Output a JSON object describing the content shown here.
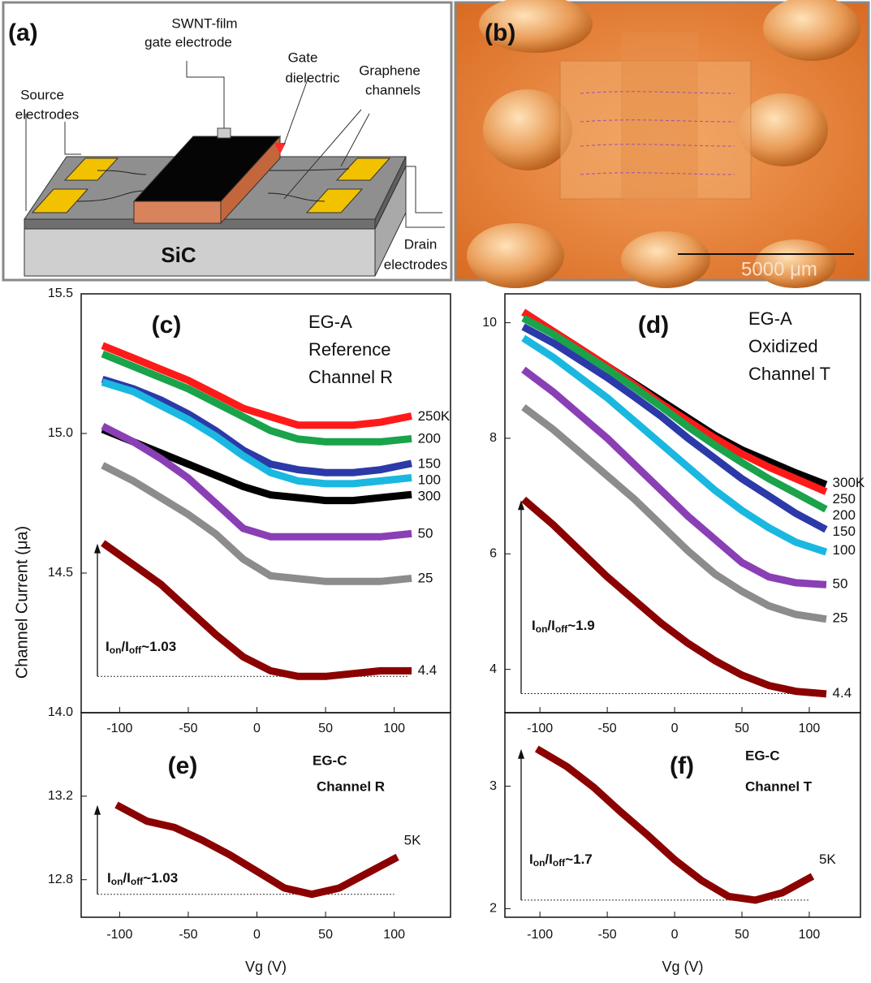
{
  "panel_a": {
    "label": "(a)",
    "swnt_1": "SWNT-film",
    "swnt_2": "gate electrode",
    "gate_1": "Gate",
    "gate_2": "dielectric",
    "graphene_1": "Graphene",
    "graphene_2": "channels",
    "source_1": "Source",
    "source_2": "electrodes",
    "drain_1": "Drain",
    "drain_2": "electrodes",
    "substrate": "SiC"
  },
  "panel_b": {
    "label": "(b)",
    "scale": "5000 μm"
  },
  "ylabel": "Channel Current (μa)",
  "chart_data": [
    {
      "type": "line",
      "panel": "(c)",
      "annotations": [
        "EG-A",
        "Reference",
        "Channel R"
      ],
      "ratio_label": [
        "I",
        "on",
        "/I",
        "off",
        "~1.03"
      ],
      "x": [
        -110,
        -90,
        -70,
        -50,
        -30,
        -10,
        10,
        30,
        50,
        70,
        90,
        110
      ],
      "xlim": [
        -128,
        141
      ],
      "xticks": [
        -100,
        -50,
        0,
        50,
        100
      ],
      "ylim": [
        14.0,
        15.5
      ],
      "yticks": [
        {
          "value": 14.0,
          "label": "14.0"
        },
        14.5,
        {
          "value": 15.0,
          "label": "15.0"
        },
        15.5
      ],
      "series": [
        {
          "name": "250K",
          "color": "#ff1a1a",
          "values": [
            15.31,
            15.27,
            15.23,
            15.19,
            15.14,
            15.09,
            15.06,
            15.03,
            15.03,
            15.03,
            15.04,
            15.06
          ]
        },
        {
          "name": "200",
          "color": "#1aa34a",
          "values": [
            15.28,
            15.24,
            15.2,
            15.16,
            15.11,
            15.06,
            15.01,
            14.98,
            14.97,
            14.97,
            14.97,
            14.98
          ]
        },
        {
          "name": "150",
          "color": "#2b3aa8",
          "values": [
            15.19,
            15.16,
            15.12,
            15.07,
            15.01,
            14.94,
            14.89,
            14.87,
            14.86,
            14.86,
            14.87,
            14.89
          ]
        },
        {
          "name": "100",
          "color": "#1ab8e0",
          "values": [
            15.18,
            15.15,
            15.1,
            15.05,
            14.99,
            14.92,
            14.86,
            14.83,
            14.82,
            14.82,
            14.83,
            14.84
          ]
        },
        {
          "name": "300",
          "color": "#000000",
          "values": [
            15.01,
            14.97,
            14.93,
            14.89,
            14.85,
            14.81,
            14.78,
            14.77,
            14.76,
            14.76,
            14.77,
            14.78
          ]
        },
        {
          "name": "50",
          "color": "#8a3fb5",
          "values": [
            15.02,
            14.97,
            14.91,
            14.84,
            14.75,
            14.66,
            14.63,
            14.63,
            14.63,
            14.63,
            14.63,
            14.64
          ]
        },
        {
          "name": "25",
          "color": "#8c8c8c",
          "values": [
            14.88,
            14.83,
            14.77,
            14.71,
            14.64,
            14.55,
            14.49,
            14.48,
            14.47,
            14.47,
            14.47,
            14.48
          ]
        },
        {
          "name": "4.4",
          "color": "#8b0000",
          "values": [
            14.6,
            14.53,
            14.46,
            14.37,
            14.28,
            14.2,
            14.15,
            14.13,
            14.13,
            14.14,
            14.15,
            14.15
          ]
        }
      ]
    },
    {
      "type": "line",
      "panel": "(d)",
      "annotations": [
        "EG-A",
        "Oxidized",
        "Channel T"
      ],
      "ratio_label": [
        "I",
        "on",
        "/I",
        "off",
        "~1.9"
      ],
      "x": [
        -110,
        -90,
        -70,
        -50,
        -30,
        -10,
        10,
        30,
        50,
        70,
        90,
        110
      ],
      "xlim": [
        -126,
        138
      ],
      "xticks": [
        -100,
        -50,
        0,
        50,
        100
      ],
      "ylim": [
        3.25,
        10.5
      ],
      "yticks": [
        4,
        6,
        8,
        10
      ],
      "series": [
        {
          "name": "300K",
          "color": "#000000",
          "values": [
            10.15,
            9.85,
            9.55,
            9.25,
            8.95,
            8.65,
            8.35,
            8.05,
            7.8,
            7.6,
            7.4,
            7.22
          ]
        },
        {
          "name": "250",
          "color": "#ff1a1a",
          "values": [
            10.15,
            9.85,
            9.55,
            9.25,
            8.93,
            8.6,
            8.3,
            8.0,
            7.73,
            7.5,
            7.3,
            7.1
          ]
        },
        {
          "name": "200",
          "color": "#1aa34a",
          "values": [
            10.05,
            9.8,
            9.5,
            9.2,
            8.88,
            8.55,
            8.2,
            7.88,
            7.58,
            7.3,
            7.05,
            6.8
          ]
        },
        {
          "name": "150",
          "color": "#2b3aa8",
          "values": [
            9.9,
            9.65,
            9.35,
            9.05,
            8.72,
            8.38,
            8.0,
            7.65,
            7.3,
            7.0,
            6.7,
            6.45
          ]
        },
        {
          "name": "100",
          "color": "#1ab8e0",
          "values": [
            9.7,
            9.4,
            9.05,
            8.7,
            8.3,
            7.9,
            7.5,
            7.1,
            6.75,
            6.45,
            6.2,
            6.05
          ]
        },
        {
          "name": "50",
          "color": "#8a3fb5",
          "values": [
            9.15,
            8.8,
            8.4,
            8.0,
            7.55,
            7.1,
            6.65,
            6.25,
            5.85,
            5.6,
            5.5,
            5.47
          ]
        },
        {
          "name": "25",
          "color": "#8c8c8c",
          "values": [
            8.5,
            8.15,
            7.75,
            7.35,
            6.95,
            6.5,
            6.05,
            5.65,
            5.35,
            5.1,
            4.95,
            4.88
          ]
        },
        {
          "name": "4.4",
          "color": "#8b0000",
          "values": [
            6.9,
            6.5,
            6.05,
            5.6,
            5.2,
            4.8,
            4.45,
            4.15,
            3.9,
            3.72,
            3.62,
            3.58
          ]
        }
      ]
    },
    {
      "type": "line",
      "panel": "(e)",
      "annotations": [
        "EG-C",
        "Channel R"
      ],
      "ratio_label": [
        "I",
        "on",
        "/I",
        "off",
        "~1.03"
      ],
      "xlabel": "Vg (V)",
      "x": [
        -100,
        -80,
        -60,
        -40,
        -20,
        0,
        20,
        40,
        60,
        80,
        100
      ],
      "xlim": [
        -128,
        141
      ],
      "xticks": [
        -100,
        -50,
        0,
        50,
        100
      ],
      "ylim": [
        12.62,
        13.6
      ],
      "yticks": [
        12.8,
        13.2
      ],
      "series": [
        {
          "name": "5K",
          "color": "#8b0000",
          "values": [
            13.15,
            13.08,
            13.05,
            12.99,
            12.92,
            12.84,
            12.76,
            12.73,
            12.76,
            12.83,
            12.9
          ]
        }
      ]
    },
    {
      "type": "line",
      "panel": "(f)",
      "annotations": [
        "EG-C",
        "Channel T"
      ],
      "ratio_label": [
        "I",
        "on",
        "/I",
        "off",
        "~1.7"
      ],
      "xlabel": "Vg (V)",
      "x": [
        -100,
        -80,
        -60,
        -40,
        -20,
        0,
        20,
        40,
        60,
        80,
        100
      ],
      "xlim": [
        -126,
        138
      ],
      "xticks": [
        -100,
        -50,
        0,
        50,
        100
      ],
      "ylim": [
        1.93,
        3.6
      ],
      "yticks": [
        2,
        3
      ],
      "series": [
        {
          "name": "5K",
          "color": "#8b0000",
          "values": [
            3.29,
            3.16,
            2.99,
            2.79,
            2.6,
            2.4,
            2.23,
            2.1,
            2.07,
            2.13,
            2.25
          ]
        }
      ]
    }
  ]
}
